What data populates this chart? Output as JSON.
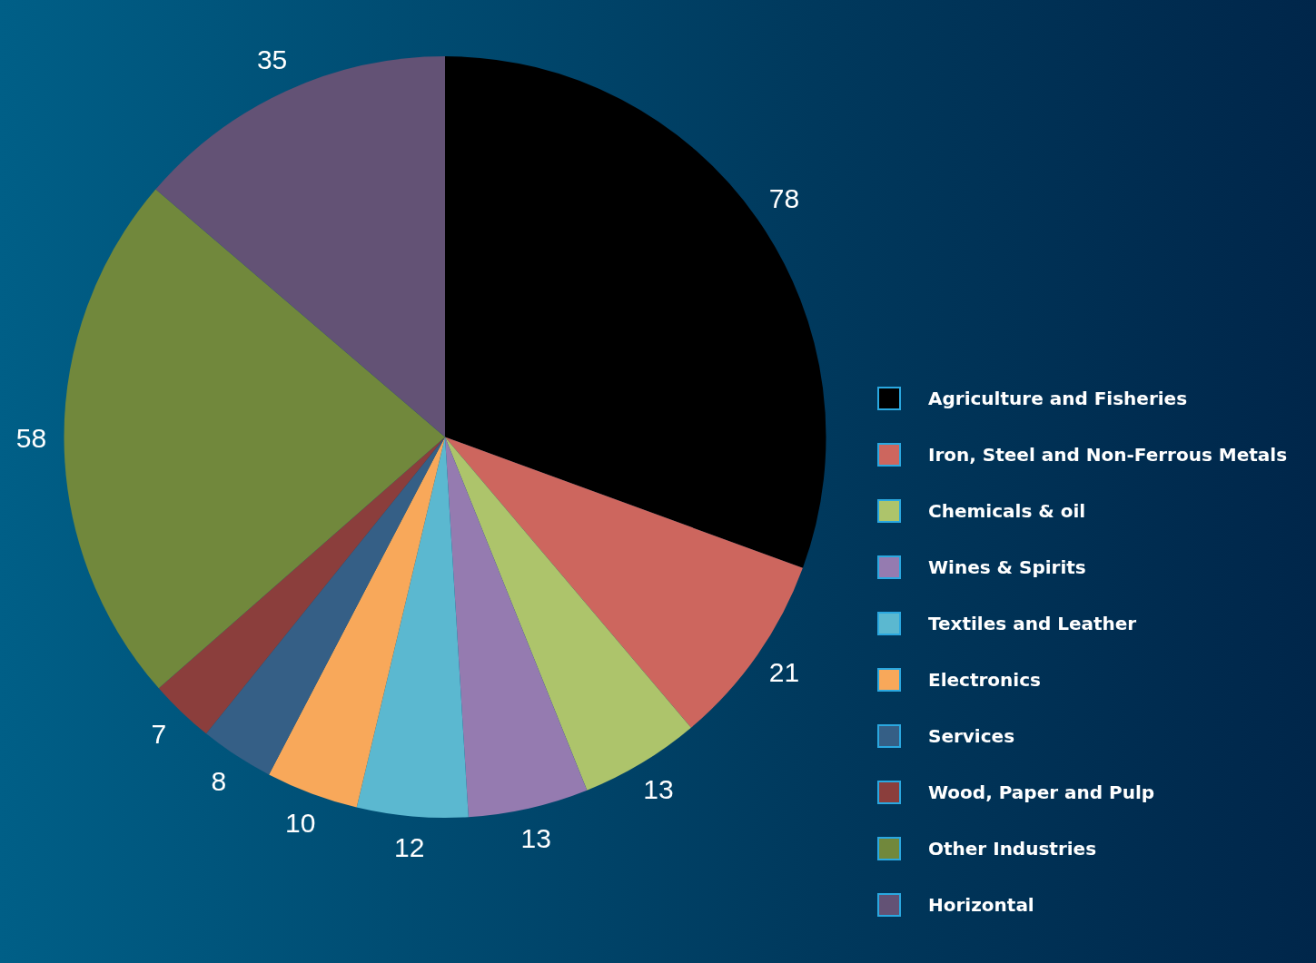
{
  "chart_data": {
    "type": "pie",
    "categories": [
      "Agriculture and Fisheries",
      "Iron, Steel and Non-Ferrous Metals",
      "Chemicals & oil",
      "Wines & Spirits",
      "Textiles and Leather",
      "Electronics",
      "Services",
      "Wood, Paper and Pulp",
      "Other Industries",
      "Horizontal"
    ],
    "values": [
      78,
      21,
      13,
      13,
      12,
      10,
      8,
      7,
      58,
      35
    ],
    "colors": [
      "#000000",
      "#cd665e",
      "#adc46b",
      "#957bb0",
      "#5bb8d0",
      "#f8a85a",
      "#355f86",
      "#8b3e3c",
      "#71883c",
      "#635275"
    ],
    "data_labels": true,
    "legend": "right"
  }
}
